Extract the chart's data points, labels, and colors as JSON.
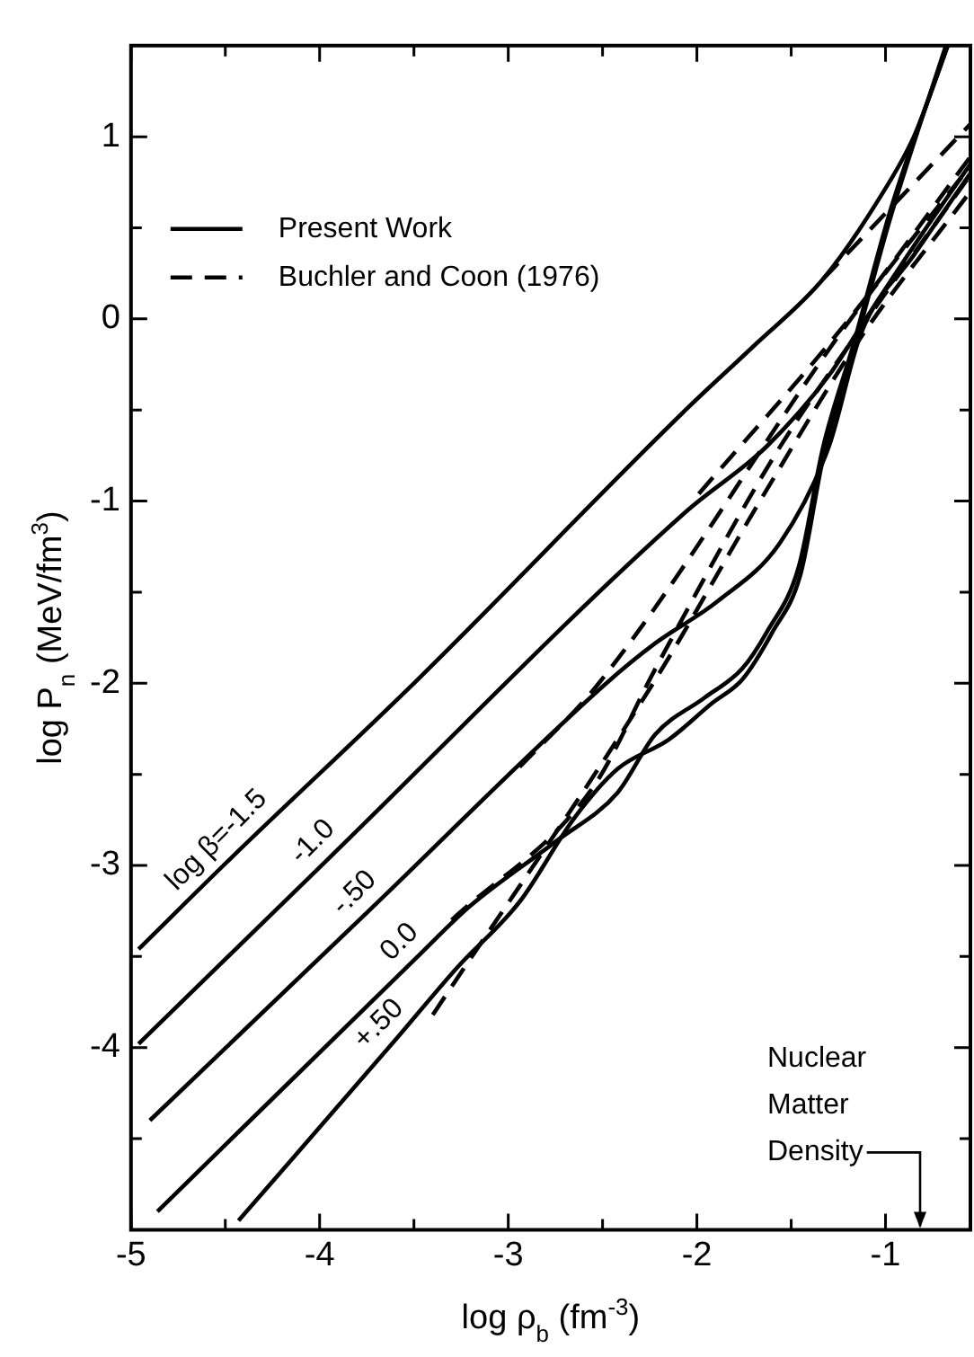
{
  "chart_data": {
    "type": "line",
    "xlabel": "log ρ$_{b}$ (fm$^{-3}$)",
    "ylabel": "log P$_{n}$ (MeV/fm$^{3}$)",
    "xlim": [
      -5,
      -0.55
    ],
    "ylim": [
      -5,
      1.5
    ],
    "xticks": [
      -5,
      {
        "value": -4.5,
        "label": null
      },
      -4,
      {
        "value": -3.5,
        "label": null
      },
      -3,
      {
        "value": -2.5,
        "label": null
      },
      -2,
      {
        "value": -1.5,
        "label": null
      },
      -1
    ],
    "yticks": [
      {
        "value": -4.5,
        "label": null
      },
      -4,
      {
        "value": -3.5,
        "label": null
      },
      -3,
      {
        "value": -2.5,
        "label": null
      },
      -2,
      {
        "value": -1.5,
        "label": null
      },
      -1,
      {
        "value": -0.5,
        "label": null
      },
      0,
      {
        "value": 0.5,
        "label": null
      },
      1
    ],
    "grid": false,
    "legend": "top left",
    "marker": "none",
    "series": [
      {
        "name": "Present Work",
        "color": "#000000",
        "line_style": "solid",
        "x": [
          -4.96,
          -4.46,
          -3.5,
          -2.06,
          -1.7,
          -1.33,
          -1.04,
          -0.85,
          -0.67
        ],
        "values": [
          -3.46,
          -2.95,
          -2.0,
          -0.5,
          -0.15,
          0.22,
          0.65,
          1.0,
          1.5
        ]
      },
      {
        "color": "#000000",
        "line_style": "solid",
        "x": [
          -4.96,
          -3.95,
          -2.06,
          -1.63,
          -1.3,
          -1.13,
          -0.85,
          -0.55
        ],
        "values": [
          -3.98,
          -2.96,
          -1.06,
          -0.7,
          -0.31,
          -0.04,
          0.4,
          0.85
        ]
      },
      {
        "color": "#000000",
        "line_style": "solid",
        "x": [
          -4.9,
          -3.73,
          -2.48,
          -2.22,
          -1.89,
          -1.56,
          -1.3,
          -1.13,
          -0.85,
          -0.55
        ],
        "values": [
          -4.4,
          -3.24,
          -2.0,
          -1.78,
          -1.55,
          -1.23,
          -0.7,
          -0.08,
          0.35,
          0.8
        ]
      },
      {
        "color": "#000000",
        "line_style": "solid",
        "x": [
          -4.86,
          -3.49,
          -3.21,
          -2.75,
          -2.42,
          -2.22,
          -1.96,
          -1.76,
          -1.63,
          -1.46,
          -1.33,
          -1.17,
          -0.97,
          -0.67
        ],
        "values": [
          -4.9,
          -3.51,
          -3.23,
          -2.87,
          -2.6,
          -2.28,
          -2.08,
          -1.92,
          -1.72,
          -1.36,
          -0.7,
          -0.14,
          0.61,
          1.5
        ]
      },
      {
        "color": "#000000",
        "line_style": "solid",
        "x": [
          -4.43,
          -3.6,
          -3.27,
          -2.94,
          -2.65,
          -2.42,
          -2.15,
          -1.92,
          -1.76,
          -1.6,
          -1.45,
          -1.33,
          -1.17,
          -0.97,
          -0.68
        ],
        "values": [
          -4.95,
          -3.96,
          -3.56,
          -3.2,
          -2.74,
          -2.47,
          -2.31,
          -2.11,
          -1.98,
          -1.72,
          -1.4,
          -0.76,
          -0.18,
          0.57,
          1.5
        ]
      },
      {
        "name": "Buchler and Coon (1976)",
        "color": "#000000",
        "line_style": "dashed",
        "x": [
          -1.33,
          -0.55
        ],
        "values": [
          0.22,
          1.07
        ]
      },
      {
        "color": "#000000",
        "line_style": "dashed",
        "x": [
          -1.99,
          -1.2,
          -0.55
        ],
        "values": [
          -0.96,
          -0.01,
          0.89
        ]
      },
      {
        "color": "#000000",
        "line_style": "dashed",
        "x": [
          -2.94,
          -2.52,
          -1.17,
          -0.55
        ],
        "values": [
          -2.46,
          -2.0,
          0.02,
          0.84
        ]
      },
      {
        "color": "#000000",
        "line_style": "dashed",
        "x": [
          -3.3,
          -2.55,
          -2.22,
          -1.6,
          -1.13,
          -0.55
        ],
        "values": [
          -3.3,
          -2.57,
          -1.92,
          -0.77,
          -0.05,
          0.79
        ]
      },
      {
        "color": "#000000",
        "line_style": "dashed",
        "x": [
          -3.4,
          -2.22,
          -1.66,
          -1.13,
          -0.55
        ],
        "values": [
          -3.82,
          -1.98,
          -0.99,
          -0.1,
          0.7
        ]
      }
    ],
    "annotations": [
      {
        "text": "log β=-1.5",
        "x": -4.46,
        "y": -2.95
      },
      {
        "text": "-1.0",
        "x": -3.95,
        "y": -2.96
      },
      {
        "text": "-.50",
        "x": -3.73,
        "y": -3.24
      },
      {
        "text": "0.0",
        "x": -3.49,
        "y": -3.51
      },
      {
        "text": "+.50",
        "x": -3.6,
        "y": -3.96
      },
      "Nuclear Matter Density"
    ]
  }
}
